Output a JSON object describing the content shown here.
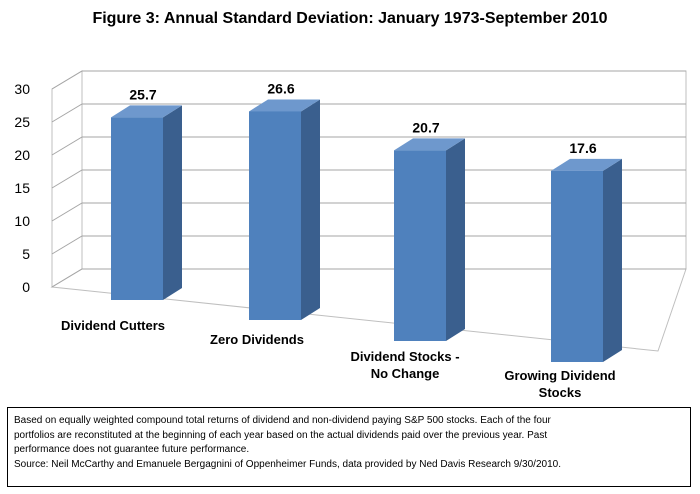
{
  "chart_data": {
    "type": "bar",
    "title": "Figure 3: Annual Standard Deviation: January 1973-September 2010",
    "categories": [
      [
        "Dividend Cutters"
      ],
      [
        "Zero Dividends"
      ],
      [
        "Dividend Stocks -",
        "No Change"
      ],
      [
        "Growing Dividend",
        "Stocks"
      ]
    ],
    "values": [
      25.7,
      26.6,
      20.7,
      17.6
    ],
    "data_labels": [
      "25.7",
      "26.6",
      "20.7",
      "17.6"
    ],
    "y_ticks": [
      "0",
      "5",
      "10",
      "15",
      "20",
      "25",
      "30"
    ],
    "ylim": [
      0,
      30
    ],
    "grid": true,
    "legend": "none",
    "bar_color": "#4f81bd",
    "bar_side_color": "#3a5f8e",
    "bar_top_color": "#6e98cd",
    "xlabel": "",
    "ylabel": ""
  },
  "note": {
    "lines": [
      "Based on equally weighted compound total returns of dividend and non-dividend paying S&P 500 stocks. Each of the four",
      "portfolios are reconstituted at the beginning of each year based on the actual dividends paid over the previous year. Past",
      "performance does not guarantee future performance.",
      "Source: Neil McCarthy and Emanuele Bergagnini of Oppenheimer Funds, data provided by Ned Davis Research 9/30/2010."
    ]
  }
}
